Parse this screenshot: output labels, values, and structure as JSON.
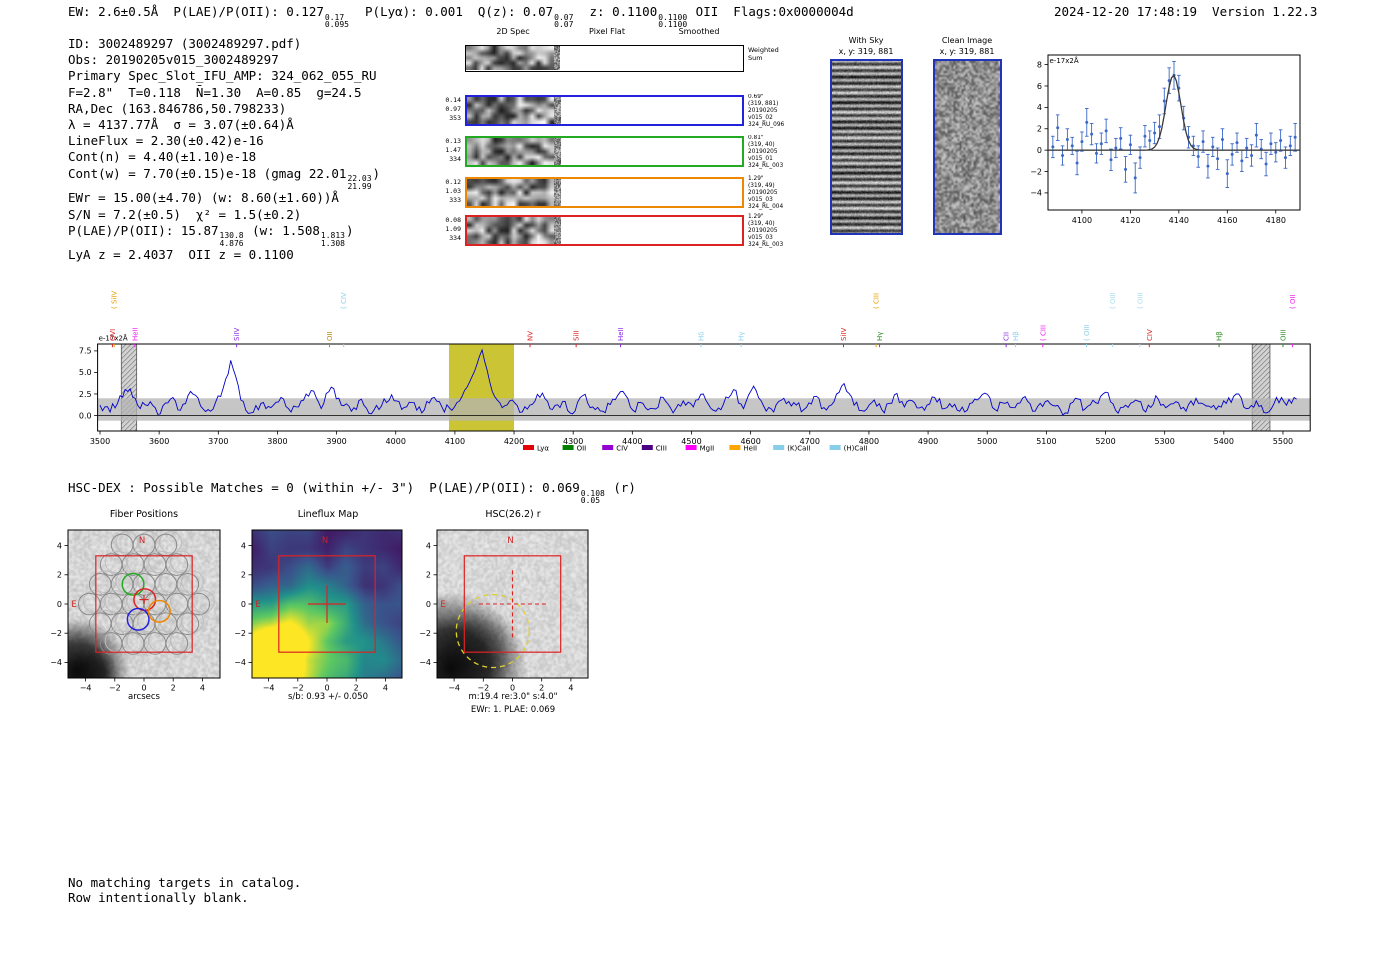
{
  "title_bar": {
    "left": [
      {
        "t": "EW: 2.6±0.5Å  P(LAE)/P(OII): 0.127"
      },
      {
        "f": [
          "0.17",
          "0.095"
        ]
      },
      {
        "t": "  P(Lyα): 0.001  Q(z): 0.07"
      },
      {
        "f": [
          "0.07",
          "0.07"
        ]
      },
      {
        "t": "  z: 0.1100"
      },
      {
        "f": [
          "0.1100",
          "0.1100"
        ]
      },
      {
        "t": " OII  Flags:0x0000004d"
      }
    ],
    "right": "2024-12-20 17:48:19  Version 1.22.3"
  },
  "info": {
    "lines": [
      [
        {
          "t": "ID: 3002489297 (3002489297.pdf)"
        }
      ],
      [
        {
          "t": "Obs: 20190205v015_3002489297"
        }
      ],
      [
        {
          "t": "Primary Spec_Slot_IFU_AMP: 324_062_055_RU"
        }
      ],
      [
        {
          "t": "F=2.8\"  T=0.118  N̄=1.30  A=0.85  g=24.5"
        }
      ],
      [
        {
          "t": "RA,Dec (163.846786,50.798233)"
        }
      ],
      [
        {
          "t": "λ = 4137.77Å  σ = 3.07(±0.64)Å"
        }
      ],
      [
        {
          "t": "LineFlux = 2.30(±0.42)e-16"
        }
      ],
      [
        {
          "t": "Cont(n) = 4.40(±1.10)e-18"
        }
      ],
      [
        {
          "t": "Cont(w) = 7.70(±0.15)e-18 (gmag 22.01"
        },
        {
          "f": [
            "22.03",
            "21.99"
          ]
        },
        {
          "t": ")"
        }
      ],
      [
        {
          "t": "EWr = 15.00(±4.70) (w: 8.60(±1.60))Å"
        }
      ],
      [
        {
          "t": "S/N = 7.2(±0.5)  χ² = 1.5(±0.2)"
        }
      ],
      [
        {
          "t": "P(LAE)/P(OII): 15.87"
        },
        {
          "f": [
            "130.8",
            "4.876"
          ]
        },
        {
          "t": " (w: 1.508"
        },
        {
          "f": [
            "1.813",
            "1.308"
          ]
        },
        {
          "t": ")"
        }
      ],
      [
        {
          "t": "LyA z = 2.4037  OII z = 0.1100"
        }
      ]
    ]
  },
  "spec2d": {
    "headers": [
      "2D Spec",
      "Pixel Flat",
      "Smoothed"
    ],
    "weighted": [
      "Weighted",
      "Sum"
    ],
    "rows": [
      {
        "left": [
          "0.14",
          "0.97",
          "353"
        ],
        "right": [
          "0.69\"",
          "(319, 881)",
          "20190205",
          "v015_02",
          "324_RU_096"
        ],
        "color": "#2222dd"
      },
      {
        "left": [
          "0.13",
          "1.47",
          "334"
        ],
        "right": [
          "0.81\"",
          "(319, 40)",
          "20190205",
          "v015_01",
          "324_RL_003"
        ],
        "color": "#22aa22"
      },
      {
        "left": [
          "0.12",
          "1.03",
          "333"
        ],
        "right": [
          "1.29\"",
          "(319, 49)",
          "20190205",
          "v015_03",
          "324_RL_004"
        ],
        "color": "#ee8800"
      },
      {
        "left": [
          "0.08",
          "1.09",
          "334"
        ],
        "right": [
          "1.29\"",
          "(319, 40)",
          "20190205",
          "v015_03",
          "324_RL_003"
        ],
        "color": "#dd2222"
      }
    ]
  },
  "sky": {
    "with_sky_title": "With Sky",
    "with_sky_xy": "x, y: 319, 881",
    "clean_title": "Clean Image",
    "clean_xy": "x, y: 319, 881"
  },
  "hsc_line": [
    {
      "t": "HSC-DEX : Possible Matches = 0 (within +/- 3\")  P(LAE)/P(OII): 0.069"
    },
    {
      "f": [
        "0.108",
        "0.05"
      ]
    },
    {
      "t": " (r)"
    }
  ],
  "panels": {
    "ticks": [
      -4,
      -2,
      0,
      2,
      4
    ],
    "fiber": {
      "title": "Fiber Positions",
      "xlabel": "arcsecs",
      "north": "N",
      "east": "E"
    },
    "lineflux": {
      "title": "Lineflux Map",
      "xlabel": "s/b: 0.93 +/- 0.050",
      "north": "N",
      "east": "E"
    },
    "hsc": {
      "title": "HSC(26.2) r",
      "xlabel": "m:19.4 re:3.0\" s:4.0\"",
      "xlabel2": "EWr: 1. PLAE: 0.069",
      "north": "N",
      "east": "E"
    }
  },
  "footer": [
    "No matching targets in catalog.",
    "Row intentionally blank."
  ],
  "chart_data": [
    {
      "id": "line_fit",
      "type": "scatter",
      "ylabel": "e-17x2Å",
      "xlim": [
        4086,
        4190
      ],
      "ylim": [
        -5.6,
        8.9
      ],
      "xticks": [
        4100,
        4120,
        4140,
        4160,
        4180
      ],
      "yticks": [
        -4,
        -2,
        0,
        2,
        4,
        6,
        8
      ],
      "x_start": 4088,
      "dx": 2,
      "y": [
        0.3,
        2.1,
        -0.5,
        1.0,
        0.4,
        -1.2,
        0.8,
        2.6,
        1.5,
        -0.3,
        0.6,
        1.8,
        -0.9,
        0.2,
        1.1,
        -1.8,
        0.5,
        -2.6,
        -0.7,
        1.3,
        0.9,
        1.6,
        2.2,
        4.6,
        6.5,
        7.0,
        5.8,
        3.0,
        1.2,
        0.4,
        -0.6,
        0.8,
        -1.5,
        0.3,
        -0.8,
        1.0,
        -2.2,
        -0.4,
        0.7,
        -1.0,
        0.2,
        -0.5,
        1.4,
        0.1,
        -1.3,
        0.6,
        -0.2,
        0.9,
        -0.7,
        0.4,
        1.2
      ],
      "err": [
        1.0,
        1.2,
        0.9,
        1.0,
        0.8,
        1.1,
        0.9,
        1.3,
        1.0,
        0.9,
        1.0,
        1.1,
        1.0,
        0.9,
        1.0,
        1.2,
        0.9,
        1.4,
        1.0,
        1.0,
        0.9,
        1.0,
        1.1,
        1.2,
        1.2,
        1.3,
        1.2,
        1.1,
        1.0,
        0.9,
        1.0,
        1.0,
        1.1,
        0.9,
        1.0,
        1.0,
        1.3,
        1.0,
        0.9,
        1.0,
        0.9,
        1.0,
        1.1,
        0.9,
        1.1,
        1.0,
        0.9,
        1.0,
        1.0,
        0.9,
        1.3
      ],
      "fit": {
        "mu": 4137.77,
        "sigma": 3.07,
        "amp": 7.0,
        "base": 0.0
      },
      "point_color": "#3a67c8",
      "fit_color": "#3a3a3a"
    },
    {
      "id": "full_spectrum",
      "type": "line",
      "ylabel": "e-17x2Å",
      "xlim": [
        3496,
        5546
      ],
      "ylim": [
        -1.8,
        8.3
      ],
      "xticks": [
        3500,
        3600,
        3700,
        3800,
        3900,
        4000,
        4100,
        4200,
        4300,
        4400,
        4500,
        4600,
        4700,
        4800,
        4900,
        5000,
        5100,
        5200,
        5300,
        5400,
        5500
      ],
      "yticks": [
        0.0,
        2.5,
        5.0,
        7.5
      ],
      "x_start": 3500,
      "dx": 17,
      "values": [
        1.2,
        0.4,
        2.3,
        3.1,
        0.8,
        1.6,
        0.2,
        1.9,
        0.6,
        2.8,
        1.1,
        0.5,
        2.2,
        6.4,
        1.8,
        0.3,
        1.4,
        0.9,
        2.1,
        0.4,
        1.7,
        2.9,
        0.8,
        3.3,
        1.2,
        0.5,
        1.9,
        0.2,
        1.1,
        2.4,
        0.7,
        1.5,
        0.3,
        2.0,
        1.0,
        0.6,
        2.2,
        4.5,
        7.6,
        2.8,
        0.9,
        1.8,
        0.4,
        1.3,
        2.6,
        0.7,
        1.6,
        0.2,
        2.3,
        1.0,
        0.5,
        1.9,
        2.8,
        0.6,
        1.4,
        0.8,
        2.1,
        0.3,
        1.7,
        1.0,
        2.5,
        0.6,
        1.3,
        3.0,
        0.8,
        3.4,
        1.1,
        0.4,
        2.0,
        1.5,
        0.7,
        2.2,
        0.9,
        1.6,
        3.7,
        1.2,
        0.5,
        1.8,
        0.3,
        2.4,
        1.0,
        1.5,
        0.6,
        2.1,
        0.8,
        1.3,
        0.4,
        1.9,
        2.6,
        0.7,
        1.4,
        0.9,
        2.2,
        0.5,
        1.6,
        1.1,
        0.3,
        2.0,
        0.8,
        1.5,
        2.7,
        0.6,
        1.2,
        1.8,
        0.4,
        2.3,
        0.9,
        1.6,
        0.5,
        2.0,
        1.1,
        0.7,
        1.4,
        2.5,
        0.8,
        1.7,
        0.3,
        2.1,
        1.2,
        1.9
      ],
      "line_color": "#0000cc",
      "noise_band": {
        "low": -0.6,
        "high": 2.0,
        "color": "#b3b3b3"
      },
      "highlight_band": {
        "from": 4090,
        "to": 4200,
        "color": "#cbc535"
      },
      "hatch_bands": [
        {
          "from": 3536,
          "to": 3562
        },
        {
          "from": 5448,
          "to": 5478
        }
      ],
      "markers": [
        {
          "label": "( SiIV",
          "wave": 3524,
          "color": "#e8a000",
          "tier": 2
        },
        {
          "label": "OVI",
          "wave": 3521,
          "color": "#dd2222",
          "tier": 1
        },
        {
          "label": "HeII",
          "wave": 3559,
          "color": "#ee22ee",
          "tier": 1
        },
        {
          "label": "SiIV",
          "wave": 3731,
          "color": "#8a2be2",
          "tier": 1
        },
        {
          "label": "OII",
          "wave": 3888,
          "color": "#b8860b",
          "tier": 1
        },
        {
          "label": "( CIV",
          "wave": 3912,
          "color": "#8fd0e8",
          "tier": 2
        },
        {
          "label": "NV",
          "wave": 4227,
          "color": "#dd2222",
          "tier": 1
        },
        {
          "label": "SiII",
          "wave": 4305,
          "color": "#dd2222",
          "tier": 1
        },
        {
          "label": "HeII",
          "wave": 4380,
          "color": "#8a2be2",
          "tier": 1
        },
        {
          "label": "Hδ",
          "wave": 4516,
          "color": "#8fd0e8",
          "tier": 1
        },
        {
          "label": "Hγ",
          "wave": 4584,
          "color": "#8fd0e8",
          "tier": 1
        },
        {
          "label": "SiIV",
          "wave": 4757,
          "color": "#dd2222",
          "tier": 1
        },
        {
          "label": "( CIII",
          "wave": 4812,
          "color": "#e8a000",
          "tier": 2
        },
        {
          "label": "Hγ",
          "wave": 4818,
          "color": "#2e8b22",
          "tier": 1
        },
        {
          "label": "CII",
          "wave": 5032,
          "color": "#8a2be2",
          "tier": 1
        },
        {
          "label": "Hβ",
          "wave": 5048,
          "color": "#8fd0e8",
          "tier": 1
        },
        {
          "label": "( CIII",
          "wave": 5094,
          "color": "#ee22ee",
          "tier": 1
        },
        {
          "label": "( OIII",
          "wave": 5168,
          "color": "#8fd0e8",
          "tier": 1
        },
        {
          "label": "( OIII",
          "wave": 5212,
          "color": "#a8dcef",
          "tier": 2
        },
        {
          "label": "( OIII",
          "wave": 5258,
          "color": "#a8dcef",
          "tier": 2
        },
        {
          "label": "CIV",
          "wave": 5274,
          "color": "#dd2222",
          "tier": 1
        },
        {
          "label": "Hβ",
          "wave": 5392,
          "color": "#2e8b22",
          "tier": 1
        },
        {
          "label": "OIII",
          "wave": 5500,
          "color": "#2e8b22",
          "tier": 1
        },
        {
          "label": "( OII",
          "wave": 5516,
          "color": "#ee22ee",
          "tier": 2
        }
      ],
      "legend": [
        {
          "label": "Lyα",
          "color": "#e50000"
        },
        {
          "label": "OII",
          "color": "#008000"
        },
        {
          "label": "CIV",
          "color": "#9400d3"
        },
        {
          "label": "CIII",
          "color": "#4b0082"
        },
        {
          "label": "MgII",
          "color": "#ff00ff"
        },
        {
          "label": "HeII",
          "color": "#ffa500"
        },
        {
          "label": "(K)CaII",
          "color": "#87ceeb"
        },
        {
          "label": "(H)CaII",
          "color": "#87ceeb"
        }
      ]
    }
  ]
}
